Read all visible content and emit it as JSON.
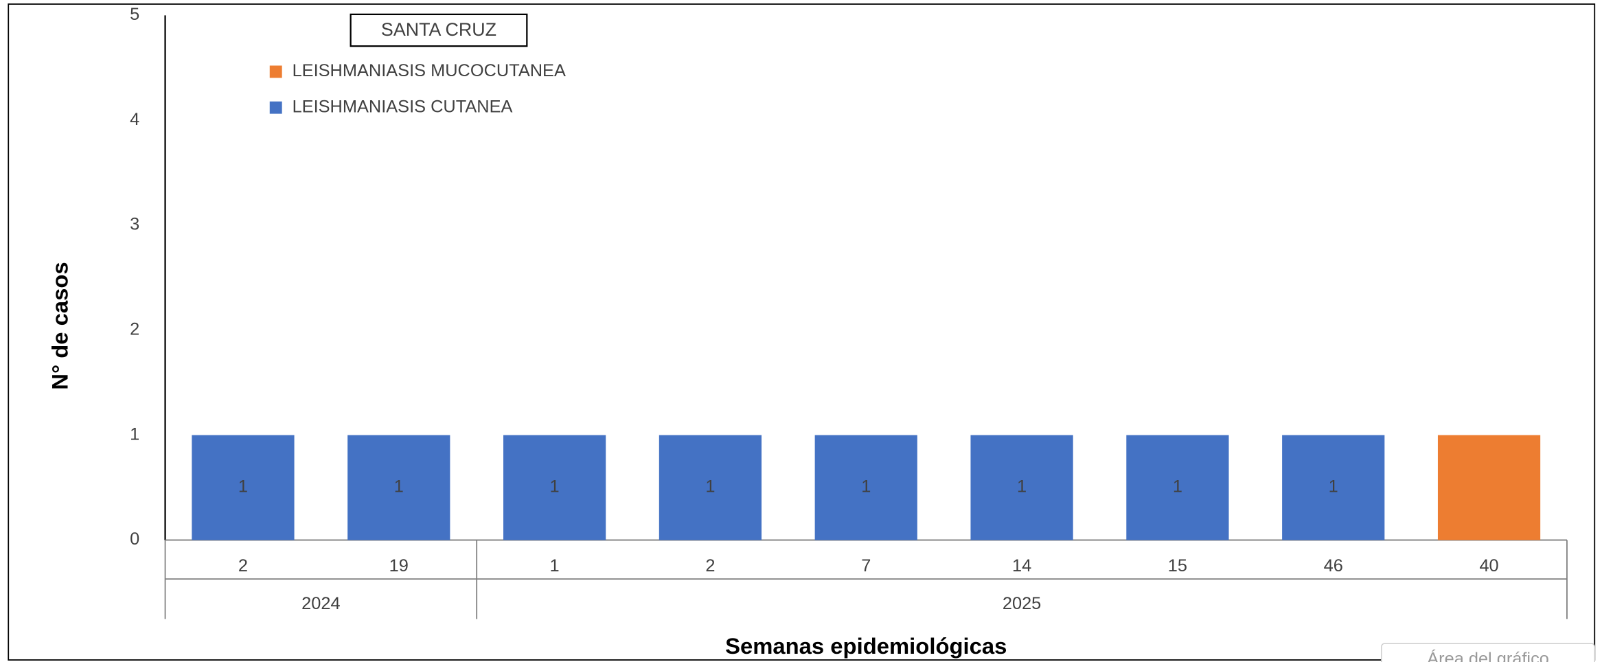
{
  "chart_data": {
    "type": "stacked_bar",
    "title": "SANTA CRUZ",
    "y_label": "N° de casos",
    "x_label": "Semanas epidemiológicas",
    "tooltip": "Área del gráfico",
    "groups": [
      {
        "label": "2024",
        "categories": [
          "2",
          "19"
        ]
      },
      {
        "label": "2025",
        "categories": [
          "1",
          "2",
          "7",
          "14",
          "15",
          "46",
          "40"
        ]
      }
    ],
    "series": [
      {
        "name": "LEISHMANIASIS CUTANEA",
        "color": "#4472c4",
        "values": [
          1,
          1,
          1,
          1,
          1,
          1,
          1,
          1,
          null
        ],
        "show_labels": true
      },
      {
        "name": "LEISHMANIASIS MUCOCUTANEA",
        "color": "#ed7d31",
        "values": [
          null,
          null,
          null,
          null,
          null,
          null,
          null,
          null,
          1
        ],
        "show_labels": false
      }
    ],
    "ylim": [
      0,
      5
    ],
    "yticks": [
      0,
      1,
      2,
      3,
      4,
      5
    ],
    "grid": false
  }
}
